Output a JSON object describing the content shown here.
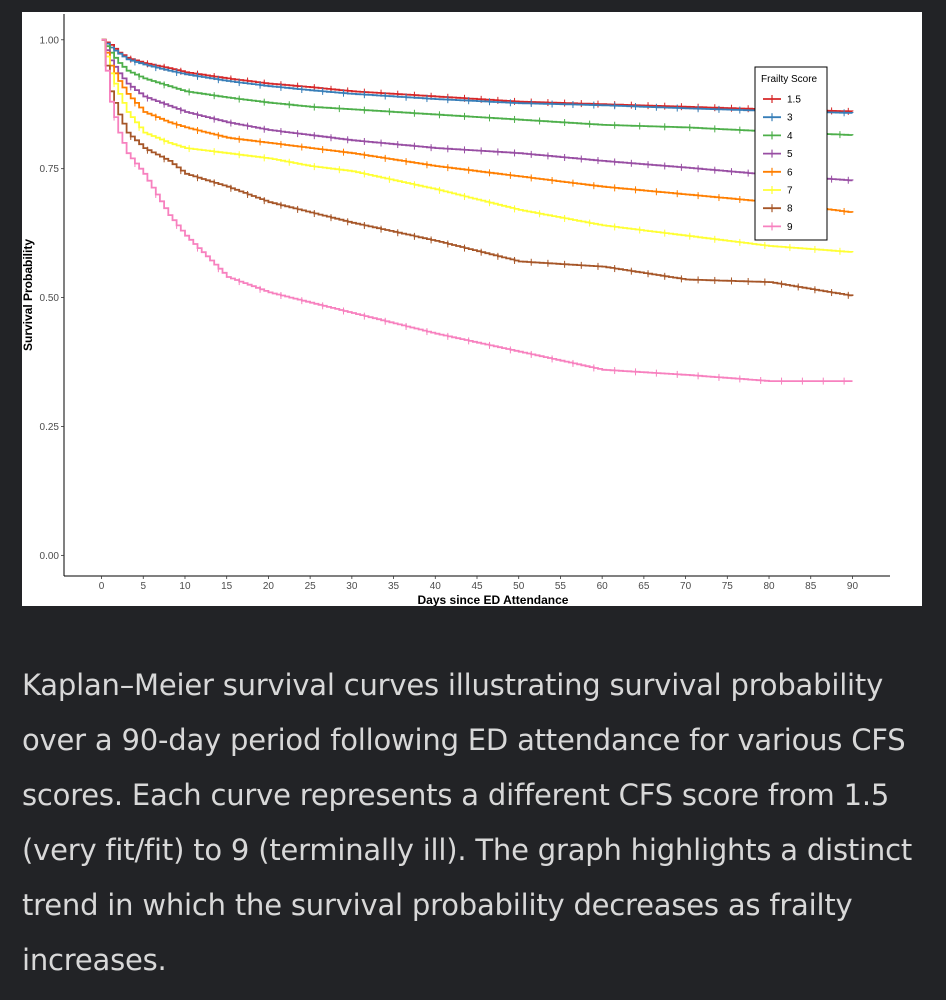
{
  "chart_data": {
    "type": "line",
    "title": "",
    "xlabel": "Days since ED Attendance",
    "ylabel": "Survival Probability",
    "xlim": [
      -4.5,
      94.5
    ],
    "ylim": [
      -0.04,
      1.05
    ],
    "x_ticks": [
      0,
      5,
      10,
      15,
      20,
      25,
      30,
      35,
      40,
      45,
      50,
      55,
      60,
      65,
      70,
      75,
      80,
      85,
      90
    ],
    "x_tick_labels": [
      "0",
      "5",
      "10",
      "15",
      "20",
      "25",
      "30",
      "35",
      "40",
      "45",
      "50",
      "55",
      "60",
      "65",
      "70",
      "75",
      "80",
      "85",
      "90"
    ],
    "y_ticks": [
      0,
      0.25,
      0.5,
      0.75,
      1.0
    ],
    "y_tick_labels": [
      "0.00",
      "0.25",
      "0.50",
      "0.75",
      "1.00"
    ],
    "legend": {
      "title": "Frailty Score",
      "position": "top-right"
    },
    "series": [
      {
        "name": "1.5",
        "color": "#d62728",
        "x": [
          0,
          1,
          2,
          3,
          5,
          8,
          10,
          15,
          20,
          25,
          30,
          40,
          50,
          60,
          70,
          80,
          90
        ],
        "values": [
          1.0,
          0.99,
          0.975,
          0.965,
          0.955,
          0.945,
          0.937,
          0.925,
          0.915,
          0.908,
          0.9,
          0.89,
          0.88,
          0.875,
          0.87,
          0.865,
          0.861
        ]
      },
      {
        "name": "3",
        "color": "#377eb8",
        "x": [
          0,
          1,
          2,
          3,
          5,
          8,
          10,
          15,
          20,
          25,
          30,
          40,
          50,
          60,
          70,
          80,
          90
        ],
        "values": [
          1.0,
          0.985,
          0.973,
          0.962,
          0.952,
          0.94,
          0.933,
          0.92,
          0.91,
          0.902,
          0.895,
          0.885,
          0.877,
          0.873,
          0.867,
          0.862,
          0.858
        ]
      },
      {
        "name": "4",
        "color": "#4daf4a",
        "x": [
          0,
          1,
          2,
          3,
          5,
          8,
          10,
          15,
          20,
          25,
          30,
          40,
          50,
          60,
          70,
          80,
          90
        ],
        "values": [
          1.0,
          0.975,
          0.955,
          0.94,
          0.925,
          0.91,
          0.9,
          0.888,
          0.878,
          0.87,
          0.865,
          0.855,
          0.845,
          0.835,
          0.83,
          0.822,
          0.815
        ]
      },
      {
        "name": "5",
        "color": "#984ea3",
        "x": [
          0,
          1,
          2,
          3,
          5,
          8,
          10,
          15,
          20,
          25,
          30,
          40,
          50,
          60,
          70,
          80,
          90
        ],
        "values": [
          1.0,
          0.96,
          0.935,
          0.915,
          0.89,
          0.872,
          0.86,
          0.84,
          0.825,
          0.815,
          0.805,
          0.79,
          0.78,
          0.765,
          0.752,
          0.738,
          0.727
        ]
      },
      {
        "name": "6",
        "color": "#ff7f00",
        "x": [
          0,
          1,
          2,
          3,
          5,
          8,
          10,
          15,
          20,
          25,
          30,
          40,
          50,
          60,
          70,
          80,
          90
        ],
        "values": [
          1.0,
          0.95,
          0.92,
          0.895,
          0.86,
          0.84,
          0.83,
          0.81,
          0.8,
          0.79,
          0.78,
          0.755,
          0.735,
          0.715,
          0.7,
          0.685,
          0.665
        ]
      },
      {
        "name": "7",
        "color": "#ffff33",
        "x": [
          0,
          1,
          2,
          3,
          5,
          8,
          10,
          15,
          20,
          25,
          30,
          40,
          50,
          60,
          70,
          80,
          90
        ],
        "values": [
          1.0,
          0.935,
          0.895,
          0.86,
          0.82,
          0.8,
          0.79,
          0.78,
          0.77,
          0.755,
          0.745,
          0.71,
          0.67,
          0.64,
          0.62,
          0.6,
          0.588
        ]
      },
      {
        "name": "8",
        "color": "#a65628",
        "x": [
          0,
          1,
          2,
          3,
          5,
          8,
          10,
          15,
          20,
          25,
          30,
          40,
          50,
          60,
          70,
          80,
          90
        ],
        "values": [
          1.0,
          0.9,
          0.855,
          0.82,
          0.79,
          0.765,
          0.74,
          0.715,
          0.685,
          0.665,
          0.645,
          0.61,
          0.57,
          0.56,
          0.535,
          0.53,
          0.503
        ]
      },
      {
        "name": "9",
        "color": "#f781bf",
        "x": [
          0,
          1,
          2,
          3,
          5,
          8,
          10,
          15,
          20,
          25,
          30,
          40,
          50,
          60,
          70,
          80,
          90
        ],
        "values": [
          1.0,
          0.88,
          0.82,
          0.78,
          0.74,
          0.66,
          0.62,
          0.54,
          0.51,
          0.49,
          0.47,
          0.43,
          0.395,
          0.36,
          0.35,
          0.338,
          0.338
        ]
      }
    ]
  },
  "caption": "Kaplan–Meier survival curves illustrating survival probability over a 90-day period following ED attendance for various CFS scores. Each curve represents a different CFS score from 1.5 (very fit/fit) to 9 (terminally ill). The graph highlights a distinct trend in which the survival probability decreases as frailty increases."
}
